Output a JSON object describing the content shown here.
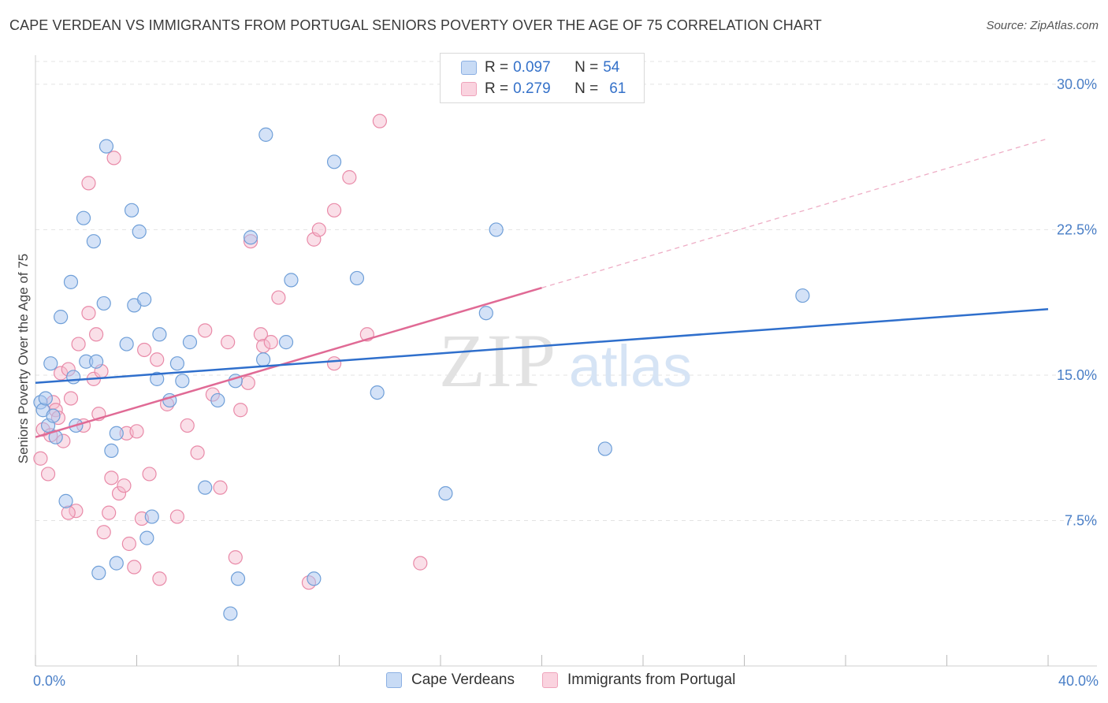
{
  "title": "CAPE VERDEAN VS IMMIGRANTS FROM PORTUGAL SENIORS POVERTY OVER THE AGE OF 75 CORRELATION CHART",
  "source": "Source: ZipAtlas.com",
  "watermark": {
    "zip": "ZIP",
    "atlas": "atlas"
  },
  "legend": {
    "rows": [
      {
        "r_label": "R =",
        "r_value": "0.097",
        "n_label": "N =",
        "n_value": "54",
        "color": "#a9c6ef"
      },
      {
        "r_label": "R =",
        "r_value": "0.279",
        "n_label": "N =",
        "n_value": "61",
        "color": "#f5b8cb"
      }
    ]
  },
  "bottom_legend": [
    "Cape Verdeans",
    "Immigrants from Portugal"
  ],
  "colors": {
    "blue_fill": "#a9c6ef",
    "blue_stroke": "#6f9fd8",
    "blue_line": "#2f6fcc",
    "pink_fill": "#f5b8cb",
    "pink_stroke": "#e98aa8",
    "pink_line": "#e06a95",
    "tick_text": "#4a7fc7",
    "grid": "#e3e3e3"
  },
  "chart_data": {
    "type": "scatter",
    "title": "CAPE VERDEAN VS IMMIGRANTS FROM PORTUGAL SENIORS POVERTY OVER THE AGE OF 75 CORRELATION CHART",
    "xlabel": "",
    "ylabel": "Seniors Poverty Over the Age of 75",
    "xlim": [
      0,
      40
    ],
    "ylim": [
      0,
      31.5
    ],
    "x_tick_labels": [
      "0.0%",
      "40.0%"
    ],
    "y_ticks": [
      7.5,
      15.0,
      22.5,
      30.0
    ],
    "y_tick_labels": [
      "7.5%",
      "15.0%",
      "22.5%",
      "30.0%"
    ],
    "grid": true,
    "legend_position": "top-center",
    "series": [
      {
        "name": "Cape Verdeans",
        "r": 0.097,
        "n": 54,
        "trend": {
          "x": [
            0,
            40
          ],
          "y": [
            14.6,
            18.4
          ]
        },
        "points": [
          [
            0.2,
            13.6
          ],
          [
            0.3,
            13.2
          ],
          [
            0.4,
            13.8
          ],
          [
            0.5,
            12.4
          ],
          [
            0.6,
            15.6
          ],
          [
            0.7,
            12.9
          ],
          [
            0.8,
            11.8
          ],
          [
            1.0,
            18.0
          ],
          [
            1.2,
            8.5
          ],
          [
            1.4,
            19.8
          ],
          [
            1.5,
            14.9
          ],
          [
            1.6,
            12.4
          ],
          [
            1.9,
            23.1
          ],
          [
            2.0,
            15.7
          ],
          [
            2.3,
            21.9
          ],
          [
            2.4,
            15.7
          ],
          [
            2.5,
            4.8
          ],
          [
            2.7,
            18.7
          ],
          [
            2.8,
            26.8
          ],
          [
            3.0,
            11.1
          ],
          [
            3.2,
            12.0
          ],
          [
            3.2,
            5.3
          ],
          [
            3.6,
            16.6
          ],
          [
            3.8,
            23.5
          ],
          [
            3.9,
            18.6
          ],
          [
            4.1,
            22.4
          ],
          [
            4.3,
            18.9
          ],
          [
            4.4,
            6.6
          ],
          [
            4.6,
            7.7
          ],
          [
            4.8,
            14.8
          ],
          [
            4.9,
            17.1
          ],
          [
            5.3,
            13.7
          ],
          [
            5.6,
            15.6
          ],
          [
            5.8,
            14.7
          ],
          [
            6.1,
            16.7
          ],
          [
            6.7,
            9.2
          ],
          [
            7.2,
            13.7
          ],
          [
            7.7,
            2.7
          ],
          [
            7.9,
            14.7
          ],
          [
            8.0,
            4.5
          ],
          [
            8.5,
            22.1
          ],
          [
            9.0,
            15.8
          ],
          [
            9.1,
            27.4
          ],
          [
            9.9,
            16.7
          ],
          [
            10.1,
            19.9
          ],
          [
            11.0,
            4.5
          ],
          [
            11.8,
            26.0
          ],
          [
            12.7,
            20.0
          ],
          [
            13.5,
            14.1
          ],
          [
            16.2,
            8.9
          ],
          [
            17.8,
            18.2
          ],
          [
            18.2,
            22.5
          ],
          [
            22.5,
            11.2
          ],
          [
            30.3,
            19.1
          ]
        ]
      },
      {
        "name": "Immigrants from Portugal",
        "r": 0.279,
        "n": 61,
        "trend": {
          "x": [
            0,
            20
          ],
          "y": [
            11.8,
            19.5
          ]
        },
        "trend_extension": {
          "x": [
            20,
            40
          ],
          "y": [
            19.5,
            27.2
          ]
        },
        "points": [
          [
            0.2,
            10.7
          ],
          [
            0.3,
            12.2
          ],
          [
            0.5,
            9.9
          ],
          [
            0.6,
            11.9
          ],
          [
            0.7,
            13.6
          ],
          [
            0.8,
            13.2
          ],
          [
            1.0,
            15.1
          ],
          [
            1.1,
            11.6
          ],
          [
            1.3,
            15.3
          ],
          [
            1.4,
            13.8
          ],
          [
            1.6,
            8.0
          ],
          [
            1.7,
            16.6
          ],
          [
            1.9,
            12.4
          ],
          [
            2.1,
            18.2
          ],
          [
            2.1,
            24.9
          ],
          [
            2.3,
            14.8
          ],
          [
            2.4,
            17.1
          ],
          [
            2.5,
            13.0
          ],
          [
            2.6,
            15.2
          ],
          [
            2.7,
            6.9
          ],
          [
            2.9,
            7.9
          ],
          [
            3.0,
            9.7
          ],
          [
            3.1,
            26.2
          ],
          [
            3.3,
            8.9
          ],
          [
            3.5,
            9.3
          ],
          [
            3.6,
            12.0
          ],
          [
            3.7,
            6.3
          ],
          [
            3.9,
            5.1
          ],
          [
            4.0,
            12.1
          ],
          [
            4.2,
            7.6
          ],
          [
            4.3,
            16.3
          ],
          [
            4.5,
            9.9
          ],
          [
            4.8,
            15.8
          ],
          [
            4.9,
            4.5
          ],
          [
            5.2,
            13.5
          ],
          [
            5.6,
            7.7
          ],
          [
            6.0,
            12.4
          ],
          [
            6.4,
            11.0
          ],
          [
            6.7,
            17.3
          ],
          [
            7.0,
            14.0
          ],
          [
            7.3,
            9.2
          ],
          [
            7.6,
            16.7
          ],
          [
            7.9,
            5.6
          ],
          [
            8.1,
            13.2
          ],
          [
            8.4,
            14.6
          ],
          [
            8.5,
            21.9
          ],
          [
            8.9,
            17.1
          ],
          [
            9.0,
            16.5
          ],
          [
            9.3,
            16.7
          ],
          [
            9.6,
            19.0
          ],
          [
            10.8,
            4.3
          ],
          [
            11.0,
            22.0
          ],
          [
            11.2,
            22.5
          ],
          [
            11.8,
            23.5
          ],
          [
            11.8,
            15.6
          ],
          [
            12.4,
            25.2
          ],
          [
            13.1,
            17.1
          ],
          [
            13.6,
            28.1
          ],
          [
            15.2,
            5.3
          ],
          [
            1.3,
            7.9
          ],
          [
            0.9,
            12.8
          ]
        ]
      }
    ]
  }
}
